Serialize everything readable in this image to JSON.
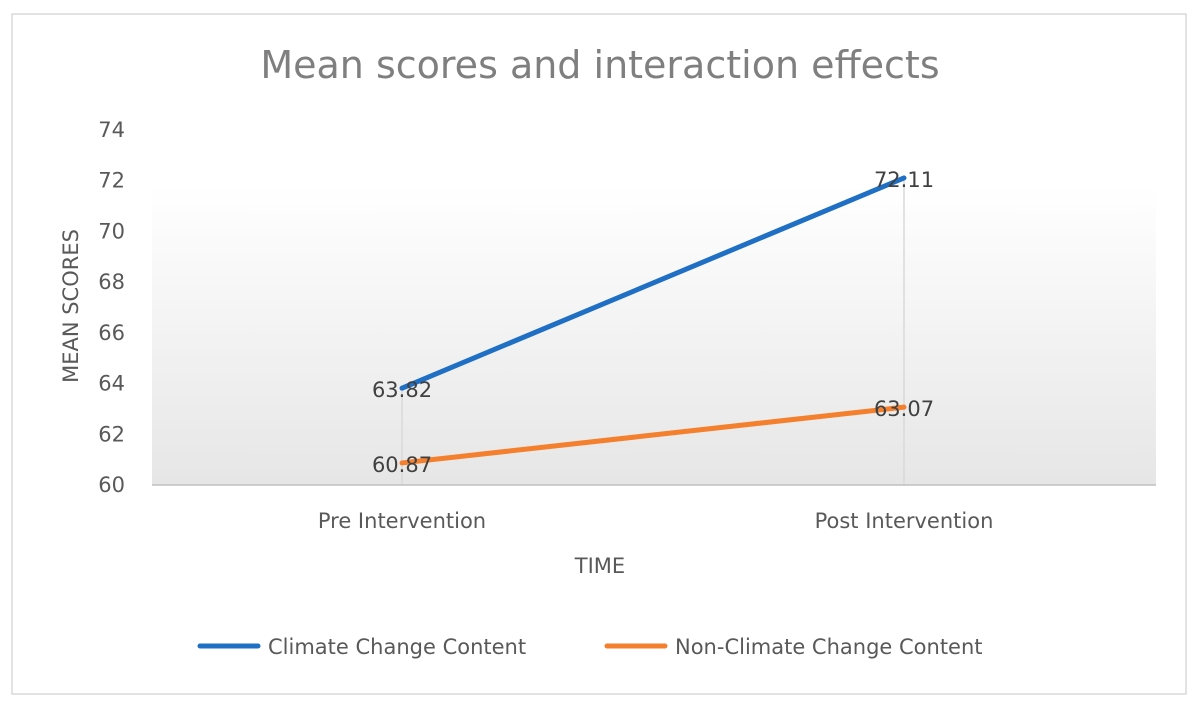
{
  "chart_data": {
    "type": "line",
    "title": "Mean scores and interaction effects",
    "xlabel": "TIME",
    "ylabel": "MEAN SCORES",
    "categories": [
      "Pre Intervention",
      "Post Intervention"
    ],
    "ylim": [
      60,
      74
    ],
    "yticks": [
      60,
      62,
      64,
      66,
      68,
      70,
      72,
      74
    ],
    "yticks_labels": [
      "60",
      "62",
      "64",
      "66",
      "68",
      "70",
      "72",
      "74"
    ],
    "grid": false,
    "legend": "bottom",
    "series": [
      {
        "name": "Climate Change Content",
        "values": [
          63.82,
          72.11
        ],
        "labels": [
          "63.82",
          "72.11"
        ],
        "color": "#1f6fc4"
      },
      {
        "name": "Non-Climate Change Content",
        "values": [
          60.87,
          63.07
        ],
        "labels": [
          "60.87",
          "63.07"
        ],
        "color": "#f47f2c"
      }
    ]
  }
}
